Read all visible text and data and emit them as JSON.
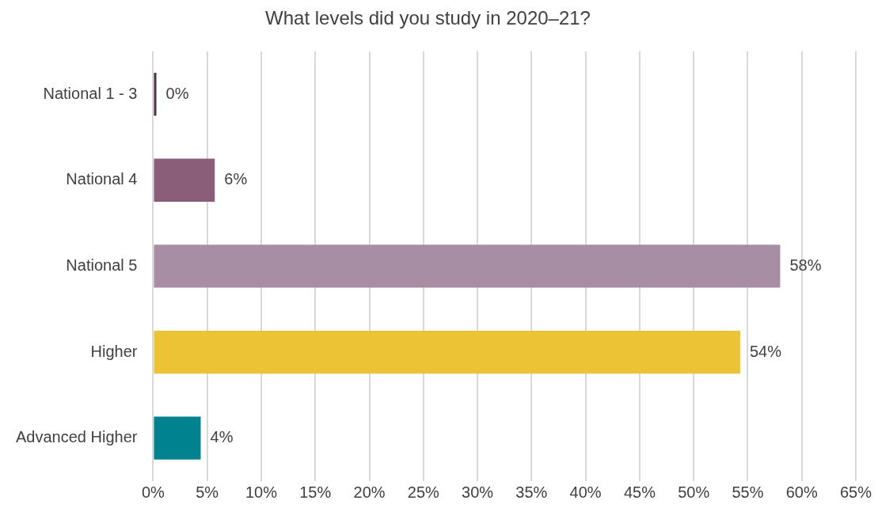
{
  "chart_data": {
    "type": "bar",
    "orientation": "horizontal",
    "title": "What levels did you study in 2020–21?",
    "categories": [
      "National 1 - 3",
      "National 4",
      "National 5",
      "Higher",
      "Advanced Higher"
    ],
    "values": [
      0.3,
      5.7,
      58.0,
      54.3,
      4.4
    ],
    "colors": [
      "#4e3644",
      "#8a5e78",
      "#a78ea5",
      "#ebc334",
      "#00838f"
    ],
    "value_labels": [
      "0%",
      "6%",
      "58%",
      "54%",
      "4%"
    ],
    "xlim": [
      0,
      65
    ],
    "xticks": [
      {
        "value": 0,
        "label": "0%"
      },
      {
        "value": 5,
        "label": "5%"
      },
      {
        "value": 10,
        "label": "10%"
      },
      {
        "value": 15,
        "label": "15%"
      },
      {
        "value": 20,
        "label": "20%"
      },
      {
        "value": 25,
        "label": "25%"
      },
      {
        "value": 30,
        "label": "30%"
      },
      {
        "value": 35,
        "label": "35%"
      },
      {
        "value": 40,
        "label": "40%"
      },
      {
        "value": 45,
        "label": "45%"
      },
      {
        "value": 50,
        "label": "50%"
      },
      {
        "value": 55,
        "label": "55%"
      },
      {
        "value": 60,
        "label": "60%"
      },
      {
        "value": 65,
        "label": "65%"
      }
    ],
    "grid": "x"
  }
}
